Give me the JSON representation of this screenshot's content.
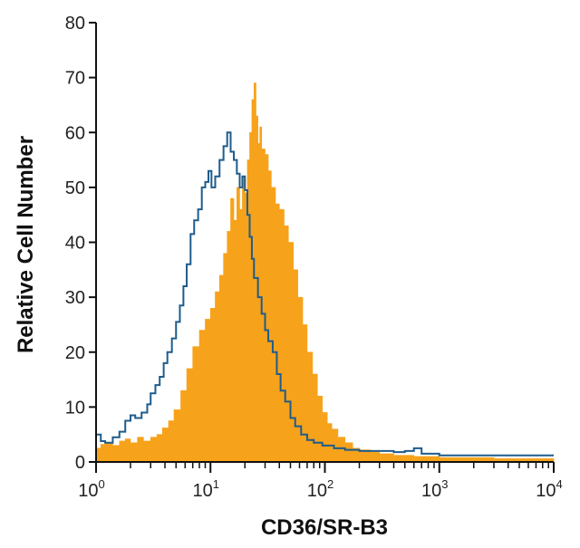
{
  "chart_data": {
    "type": "histogram",
    "xlabel": "CD36/SR-B3",
    "ylabel": "Relative Cell Number",
    "x_scale": "log",
    "xlim": [
      1,
      10000
    ],
    "ylim": [
      0,
      80
    ],
    "y_ticks": [
      0,
      10,
      20,
      30,
      40,
      50,
      60,
      70,
      80
    ],
    "x_ticks": [
      {
        "base": "10",
        "exp": "0",
        "value": 1
      },
      {
        "base": "10",
        "exp": "1",
        "value": 10
      },
      {
        "base": "10",
        "exp": "2",
        "value": 100
      },
      {
        "base": "10",
        "exp": "3",
        "value": 1000
      },
      {
        "base": "10",
        "exp": "4",
        "value": 10000
      }
    ],
    "grid": false,
    "series": [
      {
        "style": "filled",
        "color": "#F7A21B",
        "points": [
          [
            1.0,
            2.5
          ],
          [
            1.1,
            3.2
          ],
          [
            1.2,
            3.5
          ],
          [
            1.4,
            3.0
          ],
          [
            1.6,
            3.8
          ],
          [
            1.8,
            4.2
          ],
          [
            2.0,
            3.5
          ],
          [
            2.3,
            4.5
          ],
          [
            2.6,
            3.8
          ],
          [
            3.0,
            4.5
          ],
          [
            3.4,
            5.0
          ],
          [
            3.8,
            6.2
          ],
          [
            4.3,
            7.5
          ],
          [
            4.8,
            9.5
          ],
          [
            5.5,
            13
          ],
          [
            6.2,
            17
          ],
          [
            7.0,
            21
          ],
          [
            8.0,
            24
          ],
          [
            9.0,
            26
          ],
          [
            10,
            28
          ],
          [
            11,
            31
          ],
          [
            12,
            34
          ],
          [
            13,
            38
          ],
          [
            14,
            42
          ],
          [
            15,
            48
          ],
          [
            16,
            44
          ],
          [
            17,
            50
          ],
          [
            18,
            46
          ],
          [
            19,
            52
          ],
          [
            20,
            49
          ],
          [
            21,
            55
          ],
          [
            22,
            60
          ],
          [
            23,
            66
          ],
          [
            24,
            69
          ],
          [
            25,
            63
          ],
          [
            26,
            58
          ],
          [
            27,
            61
          ],
          [
            28,
            57
          ],
          [
            30,
            56
          ],
          [
            32,
            53
          ],
          [
            34,
            50
          ],
          [
            37,
            47
          ],
          [
            40,
            46
          ],
          [
            44,
            43
          ],
          [
            48,
            40
          ],
          [
            53,
            35
          ],
          [
            58,
            30
          ],
          [
            64,
            25
          ],
          [
            70,
            20
          ],
          [
            78,
            16
          ],
          [
            86,
            12
          ],
          [
            95,
            9
          ],
          [
            105,
            7
          ],
          [
            115,
            6
          ],
          [
            130,
            4.5
          ],
          [
            150,
            3.5
          ],
          [
            175,
            2.5
          ],
          [
            200,
            2.2
          ],
          [
            250,
            1.8
          ],
          [
            300,
            1.5
          ],
          [
            400,
            1.2
          ],
          [
            600,
            1.0
          ],
          [
            1000,
            0.8
          ],
          [
            3000,
            0.6
          ],
          [
            10000,
            0.5
          ]
        ]
      },
      {
        "style": "outline",
        "color": "#1F5C8B",
        "points": [
          [
            1.0,
            5.0
          ],
          [
            1.1,
            3.8
          ],
          [
            1.2,
            3.5
          ],
          [
            1.4,
            4.5
          ],
          [
            1.6,
            5.5
          ],
          [
            1.8,
            7.5
          ],
          [
            2.0,
            8.5
          ],
          [
            2.2,
            8.0
          ],
          [
            2.5,
            9.0
          ],
          [
            2.8,
            10.5
          ],
          [
            3.0,
            12.5
          ],
          [
            3.3,
            14.0
          ],
          [
            3.6,
            15.5
          ],
          [
            3.9,
            18.0
          ],
          [
            4.2,
            20.0
          ],
          [
            4.6,
            22.5
          ],
          [
            5.0,
            25.5
          ],
          [
            5.4,
            28.5
          ],
          [
            5.8,
            32.0
          ],
          [
            6.2,
            36.0
          ],
          [
            6.7,
            41.5
          ],
          [
            7.2,
            44.0
          ],
          [
            7.8,
            46.0
          ],
          [
            8.4,
            50.0
          ],
          [
            9.0,
            51.0
          ],
          [
            9.6,
            53.0
          ],
          [
            10.2,
            50.0
          ],
          [
            11,
            52.0
          ],
          [
            12,
            55.0
          ],
          [
            13,
            57.5
          ],
          [
            14,
            60.0
          ],
          [
            15,
            56.5
          ],
          [
            16,
            55.0
          ],
          [
            17,
            52.5
          ],
          [
            18,
            50.0
          ],
          [
            19,
            52.0
          ],
          [
            20,
            49.5
          ],
          [
            21,
            45.0
          ],
          [
            22,
            41.0
          ],
          [
            23,
            37.0
          ],
          [
            24,
            33.5
          ],
          [
            26,
            30.0
          ],
          [
            28,
            27.0
          ],
          [
            30,
            24.0
          ],
          [
            32,
            22.0
          ],
          [
            35,
            20.0
          ],
          [
            38,
            16.0
          ],
          [
            41,
            13.0
          ],
          [
            45,
            11.0
          ],
          [
            50,
            8.0
          ],
          [
            55,
            6.5
          ],
          [
            62,
            5.0
          ],
          [
            70,
            4.0
          ],
          [
            80,
            3.5
          ],
          [
            95,
            3.0
          ],
          [
            120,
            2.5
          ],
          [
            150,
            2.2
          ],
          [
            200,
            2.0
          ],
          [
            300,
            2.0
          ],
          [
            400,
            1.8
          ],
          [
            500,
            2.0
          ],
          [
            600,
            2.5
          ],
          [
            700,
            1.5
          ],
          [
            1000,
            1.2
          ],
          [
            2000,
            1.2
          ],
          [
            5000,
            1.2
          ],
          [
            10000,
            1.2
          ]
        ]
      }
    ]
  }
}
